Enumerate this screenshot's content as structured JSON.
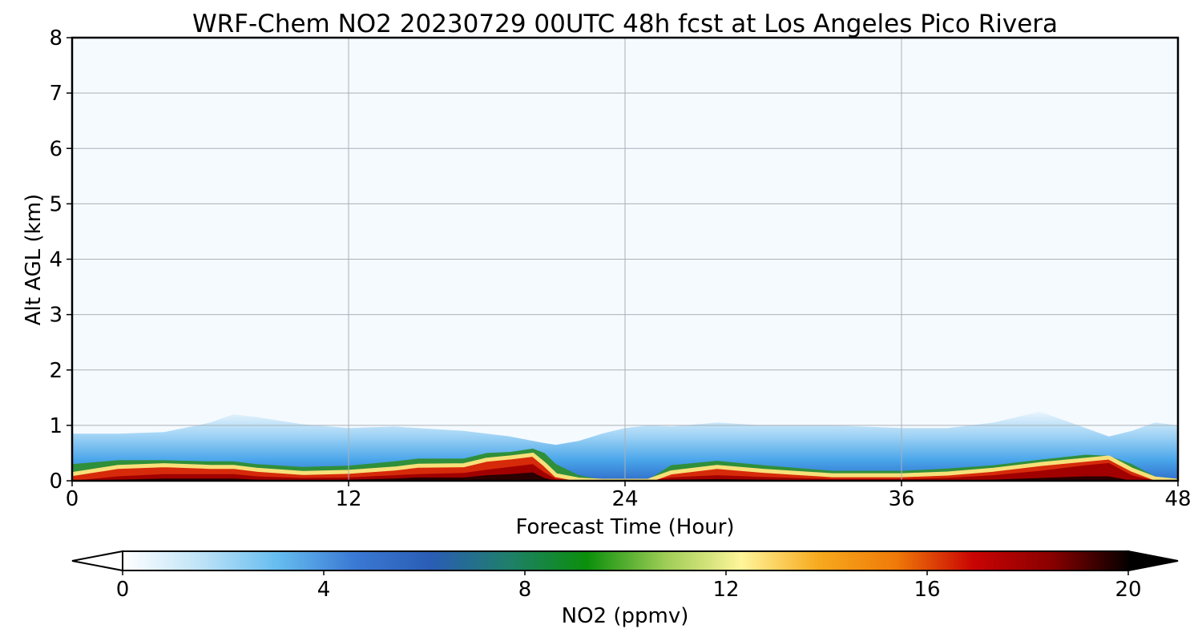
{
  "chart_data": {
    "type": "heatmap",
    "title": "WRF-Chem NO2  20230729 00UTC 48h fcst at Los Angeles Pico Rivera",
    "xlabel": "Forecast Time (Hour)",
    "ylabel": "Alt AGL (km)",
    "xlim": [
      0,
      48
    ],
    "ylim": [
      0,
      8
    ],
    "xticks": [
      "0",
      "12",
      "24",
      "36",
      "48"
    ],
    "yticks": [
      "0",
      "1",
      "2",
      "3",
      "4",
      "5",
      "6",
      "7",
      "8"
    ],
    "grid": true,
    "colorbar": {
      "label": "NO2  (ppmv)",
      "range": [
        0,
        20
      ],
      "ticks": [
        "0",
        "4",
        "8",
        "12",
        "16",
        "20"
      ],
      "extend": "both",
      "orientation": "horizontal",
      "colors": [
        "#ffffff",
        "#bfe3f7",
        "#66bdf0",
        "#3a79d4",
        "#2a5db4",
        "#1f7f6a",
        "#0b8f0b",
        "#9ccc55",
        "#fff59a",
        "#f7a91d",
        "#ef7a08",
        "#c90404",
        "#8a0000",
        "#050000"
      ]
    },
    "x": [
      0,
      2,
      4,
      6,
      7,
      8,
      10,
      12,
      14,
      15,
      17,
      18,
      19,
      20,
      20.5,
      21,
      22,
      23,
      24,
      25,
      26,
      28,
      30,
      33,
      36,
      38,
      40,
      42,
      44,
      45,
      46,
      47,
      48
    ],
    "series": [
      {
        "values": [
          0.3,
          0.37,
          0.37,
          0.35,
          0.35,
          0.3,
          0.25,
          0.27,
          0.35,
          0.4,
          0.4,
          0.5,
          0.52,
          0.58,
          0.5,
          0.3,
          0.1,
          0.02,
          0.0,
          0.02,
          0.28,
          0.36,
          0.28,
          0.18,
          0.18,
          0.22,
          0.28,
          0.38,
          0.47,
          0.45,
          0.3,
          0.08,
          0.0
        ]
      },
      {
        "values": [
          0.12,
          0.25,
          0.28,
          0.25,
          0.25,
          0.2,
          0.14,
          0.16,
          0.22,
          0.27,
          0.28,
          0.38,
          0.42,
          0.47,
          0.3,
          0.1,
          0.02,
          0.0,
          0.0,
          0.0,
          0.15,
          0.25,
          0.18,
          0.1,
          0.1,
          0.13,
          0.2,
          0.3,
          0.38,
          0.42,
          0.2,
          0.04,
          0.0
        ]
      },
      {
        "values": [
          0.0,
          0.08,
          0.12,
          0.12,
          0.12,
          0.08,
          0.05,
          0.06,
          0.1,
          0.12,
          0.14,
          0.2,
          0.25,
          0.3,
          0.15,
          0.03,
          0.0,
          0.0,
          0.0,
          0.0,
          0.06,
          0.1,
          0.07,
          0.03,
          0.03,
          0.05,
          0.1,
          0.18,
          0.28,
          0.32,
          0.1,
          0.0,
          0.0
        ]
      },
      {
        "values": [
          0.0,
          0.02,
          0.04,
          0.04,
          0.04,
          0.02,
          0.0,
          0.02,
          0.04,
          0.06,
          0.06,
          0.1,
          0.12,
          0.15,
          0.05,
          0.0,
          0.0,
          0.0,
          0.0,
          0.0,
          0.02,
          0.03,
          0.02,
          0.0,
          0.0,
          0.0,
          0.02,
          0.05,
          0.08,
          0.08,
          0.0,
          0.0,
          0.0
        ]
      },
      {
        "values": [
          0.85,
          0.85,
          0.88,
          1.05,
          1.2,
          1.15,
          1.02,
          0.95,
          0.98,
          0.95,
          0.9,
          0.85,
          0.8,
          0.72,
          0.68,
          0.65,
          0.72,
          0.85,
          0.95,
          1.0,
          0.98,
          1.05,
          1.0,
          1.0,
          0.95,
          0.95,
          1.05,
          1.25,
          0.95,
          0.8,
          0.9,
          1.05,
          1.0
        ]
      }
    ]
  }
}
